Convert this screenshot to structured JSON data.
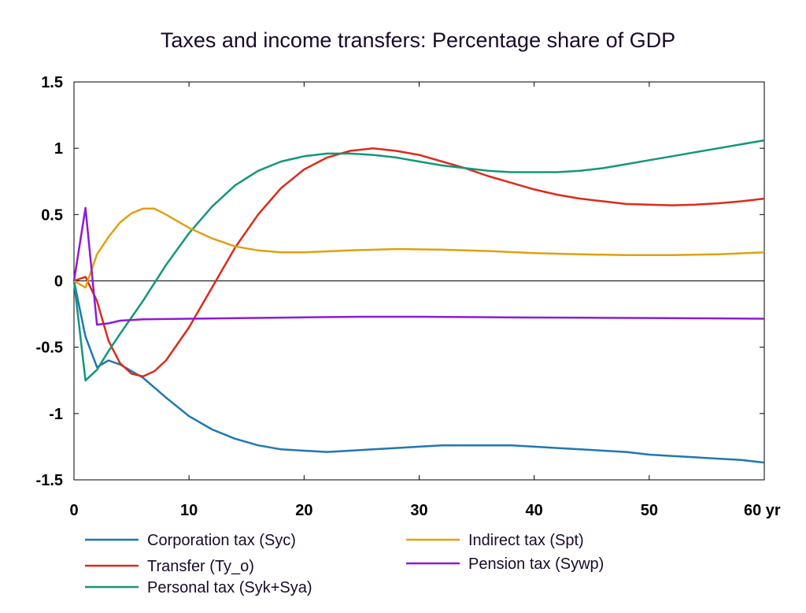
{
  "chart_data": {
    "type": "line",
    "title": "Taxes and income transfers: Percentage share of GDP",
    "xlabel": "",
    "ylabel": "",
    "xlim": [
      0,
      60
    ],
    "ylim": [
      -1.5,
      1.5
    ],
    "x_ticks": [
      "0",
      "10",
      "20",
      "30",
      "40",
      "50",
      "60 yr"
    ],
    "x_tick_values": [
      0,
      10,
      20,
      30,
      40,
      50,
      60
    ],
    "y_ticks": [
      "1.5",
      "1",
      "0.5",
      "0",
      "-0.5",
      "-1",
      "-1.5"
    ],
    "y_tick_values": [
      1.5,
      1,
      0.5,
      0,
      -0.5,
      -1,
      -1.5
    ],
    "grid": false,
    "zero_line": true,
    "legend_position": "bottom",
    "series": [
      {
        "name": "Corporation tax (Syc)",
        "color": "#1f77b4",
        "points": [
          [
            0,
            0
          ],
          [
            1,
            -0.42
          ],
          [
            2,
            -0.65
          ],
          [
            3,
            -0.6
          ],
          [
            4,
            -0.63
          ],
          [
            6,
            -0.73
          ],
          [
            8,
            -0.88
          ],
          [
            10,
            -1.02
          ],
          [
            12,
            -1.12
          ],
          [
            14,
            -1.19
          ],
          [
            16,
            -1.24
          ],
          [
            18,
            -1.27
          ],
          [
            20,
            -1.28
          ],
          [
            22,
            -1.29
          ],
          [
            24,
            -1.28
          ],
          [
            26,
            -1.27
          ],
          [
            28,
            -1.26
          ],
          [
            30,
            -1.25
          ],
          [
            32,
            -1.24
          ],
          [
            34,
            -1.24
          ],
          [
            36,
            -1.24
          ],
          [
            38,
            -1.24
          ],
          [
            40,
            -1.25
          ],
          [
            42,
            -1.26
          ],
          [
            44,
            -1.27
          ],
          [
            46,
            -1.28
          ],
          [
            48,
            -1.29
          ],
          [
            50,
            -1.31
          ],
          [
            52,
            -1.32
          ],
          [
            54,
            -1.33
          ],
          [
            56,
            -1.34
          ],
          [
            58,
            -1.35
          ],
          [
            60,
            -1.37
          ]
        ]
      },
      {
        "name": "Transfer (Ty_o)",
        "color": "#dd2a1b",
        "points": [
          [
            0,
            0
          ],
          [
            1,
            0.03
          ],
          [
            2,
            -0.15
          ],
          [
            3,
            -0.45
          ],
          [
            4,
            -0.62
          ],
          [
            5,
            -0.7
          ],
          [
            6,
            -0.72
          ],
          [
            7,
            -0.68
          ],
          [
            8,
            -0.6
          ],
          [
            10,
            -0.35
          ],
          [
            12,
            -0.05
          ],
          [
            14,
            0.25
          ],
          [
            16,
            0.5
          ],
          [
            18,
            0.7
          ],
          [
            20,
            0.84
          ],
          [
            22,
            0.93
          ],
          [
            24,
            0.98
          ],
          [
            26,
            1.0
          ],
          [
            28,
            0.98
          ],
          [
            30,
            0.95
          ],
          [
            32,
            0.9
          ],
          [
            34,
            0.85
          ],
          [
            36,
            0.79
          ],
          [
            38,
            0.74
          ],
          [
            40,
            0.69
          ],
          [
            42,
            0.65
          ],
          [
            44,
            0.62
          ],
          [
            46,
            0.6
          ],
          [
            48,
            0.58
          ],
          [
            50,
            0.575
          ],
          [
            52,
            0.57
          ],
          [
            54,
            0.575
          ],
          [
            56,
            0.585
          ],
          [
            58,
            0.6
          ],
          [
            60,
            0.62
          ]
        ]
      },
      {
        "name": "Personal tax (Syk+Sya)",
        "color": "#13967a",
        "points": [
          [
            0,
            0
          ],
          [
            1,
            -0.75
          ],
          [
            2,
            -0.67
          ],
          [
            3,
            -0.53
          ],
          [
            4,
            -0.4
          ],
          [
            6,
            -0.15
          ],
          [
            8,
            0.12
          ],
          [
            10,
            0.36
          ],
          [
            12,
            0.56
          ],
          [
            14,
            0.72
          ],
          [
            16,
            0.83
          ],
          [
            18,
            0.9
          ],
          [
            20,
            0.94
          ],
          [
            22,
            0.96
          ],
          [
            24,
            0.96
          ],
          [
            26,
            0.95
          ],
          [
            28,
            0.93
          ],
          [
            30,
            0.9
          ],
          [
            32,
            0.87
          ],
          [
            34,
            0.85
          ],
          [
            36,
            0.83
          ],
          [
            38,
            0.82
          ],
          [
            40,
            0.82
          ],
          [
            42,
            0.82
          ],
          [
            44,
            0.83
          ],
          [
            46,
            0.85
          ],
          [
            48,
            0.88
          ],
          [
            50,
            0.91
          ],
          [
            52,
            0.94
          ],
          [
            54,
            0.97
          ],
          [
            56,
            1.0
          ],
          [
            58,
            1.03
          ],
          [
            60,
            1.06
          ]
        ]
      },
      {
        "name": "Indirect tax (Spt)",
        "color": "#e0a010",
        "points": [
          [
            0,
            0
          ],
          [
            1,
            -0.05
          ],
          [
            2,
            0.2
          ],
          [
            3,
            0.33
          ],
          [
            4,
            0.44
          ],
          [
            5,
            0.51
          ],
          [
            6,
            0.545
          ],
          [
            7,
            0.545
          ],
          [
            8,
            0.5
          ],
          [
            10,
            0.4
          ],
          [
            12,
            0.32
          ],
          [
            14,
            0.26
          ],
          [
            16,
            0.23
          ],
          [
            18,
            0.215
          ],
          [
            20,
            0.215
          ],
          [
            24,
            0.23
          ],
          [
            28,
            0.24
          ],
          [
            32,
            0.235
          ],
          [
            36,
            0.225
          ],
          [
            40,
            0.21
          ],
          [
            44,
            0.2
          ],
          [
            48,
            0.195
          ],
          [
            52,
            0.195
          ],
          [
            56,
            0.2
          ],
          [
            60,
            0.215
          ]
        ]
      },
      {
        "name": "Pension tax (Sywp)",
        "color": "#8e1ad6",
        "points": [
          [
            0,
            0
          ],
          [
            1,
            0.55
          ],
          [
            2,
            -0.33
          ],
          [
            3,
            -0.32
          ],
          [
            4,
            -0.3
          ],
          [
            6,
            -0.29
          ],
          [
            10,
            -0.285
          ],
          [
            15,
            -0.28
          ],
          [
            20,
            -0.275
          ],
          [
            25,
            -0.27
          ],
          [
            30,
            -0.27
          ],
          [
            35,
            -0.273
          ],
          [
            40,
            -0.276
          ],
          [
            45,
            -0.278
          ],
          [
            50,
            -0.28
          ],
          [
            55,
            -0.282
          ],
          [
            60,
            -0.285
          ]
        ]
      }
    ]
  }
}
